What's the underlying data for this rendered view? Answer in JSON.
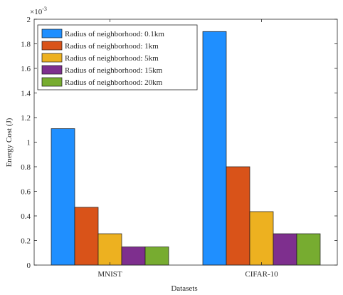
{
  "chart_data": {
    "type": "bar",
    "categories": [
      "MNIST",
      "CIFAR-10"
    ],
    "series": [
      {
        "name": "Radius of neighborhood: 0.1km",
        "color": "#1f8fff",
        "values": [
          0.00111,
          0.0019
        ]
      },
      {
        "name": "Radius of neighborhood: 1km",
        "color": "#d95319",
        "values": [
          0.00047,
          0.0008
        ]
      },
      {
        "name": "Radius of neighborhood: 5km",
        "color": "#edb120",
        "values": [
          0.000255,
          0.000435
        ]
      },
      {
        "name": "Radius of neighborhood: 15km",
        "color": "#7e2f8e",
        "values": [
          0.000148,
          0.000255
        ]
      },
      {
        "name": "Radius of neighborhood: 20km",
        "color": "#77ac30",
        "values": [
          0.000148,
          0.000255
        ]
      }
    ],
    "xlabel": "Datasets",
    "ylabel": "Energy Cost (J)",
    "ylim": [
      0,
      0.002
    ],
    "yticks": [
      "0",
      "0.2",
      "0.4",
      "0.6",
      "0.8",
      "1",
      "1.2",
      "1.4",
      "1.6",
      "1.8",
      "2"
    ],
    "y_multiplier": "×10",
    "y_multiplier_exp": "-3",
    "legend_position": "top-left",
    "grid": false
  }
}
